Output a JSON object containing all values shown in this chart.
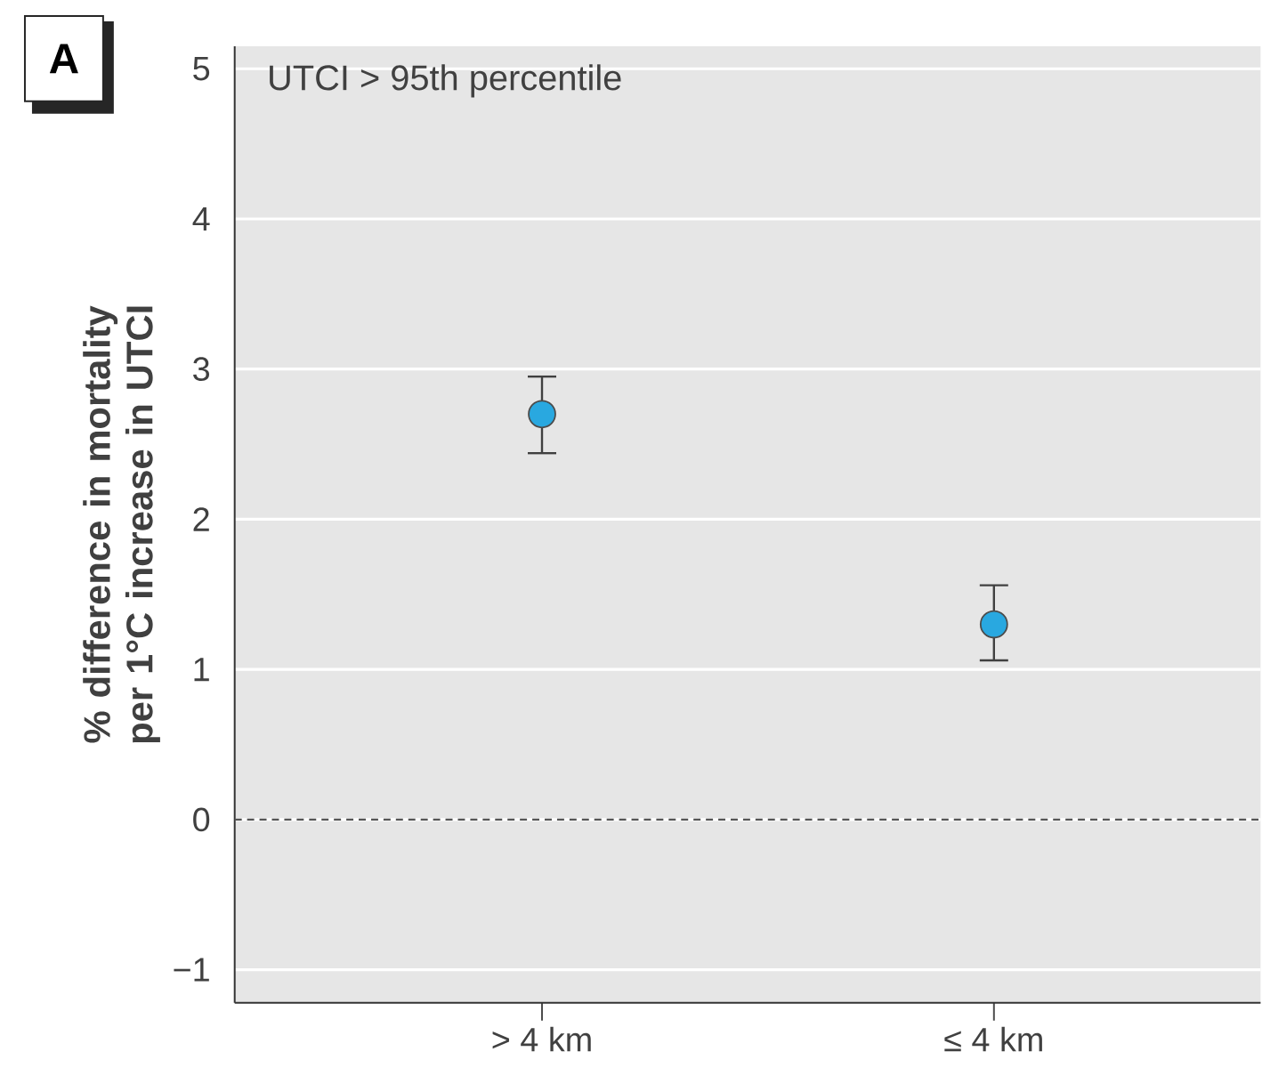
{
  "chart_data": {
    "type": "scatter",
    "ylabel": "% difference in mortality per 1°C increase in UTCI",
    "annotations": [
      "A",
      "UTCI > 95th percentile"
    ],
    "categories": [
      "> 4 km",
      "≤ 4 km"
    ],
    "series": [
      {
        "color": "#29a8e0",
        "values": [
          2.7,
          1.3
        ],
        "errors": [
          [
            2.44,
            2.95
          ],
          [
            1.06,
            1.56
          ]
        ]
      }
    ],
    "ylim": [
      -1.22,
      5.15
    ],
    "yticks": [
      {
        "value": -1,
        "label": "−1"
      },
      0,
      1,
      2,
      3,
      4,
      5
    ],
    "grid": "y",
    "marker": "circle",
    "ref_lines": [
      {
        "axis": "y",
        "value": 0,
        "color": "#555555",
        "line_style": "dashed"
      }
    ]
  }
}
